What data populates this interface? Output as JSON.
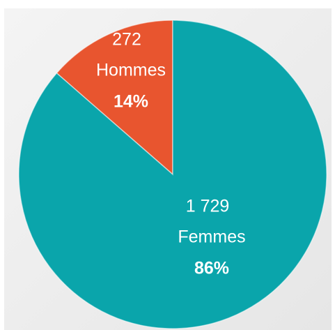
{
  "chart_data": {
    "type": "pie",
    "categories": [
      "Hommes",
      "Femmes"
    ],
    "values": [
      272,
      1729
    ],
    "value_labels": [
      "272",
      "1 729"
    ],
    "percents": [
      {
        "value": 14,
        "label": "14%"
      },
      {
        "value": 86,
        "label": "86%"
      }
    ],
    "colors": [
      "#e8552f",
      "#0aa5ab"
    ]
  }
}
